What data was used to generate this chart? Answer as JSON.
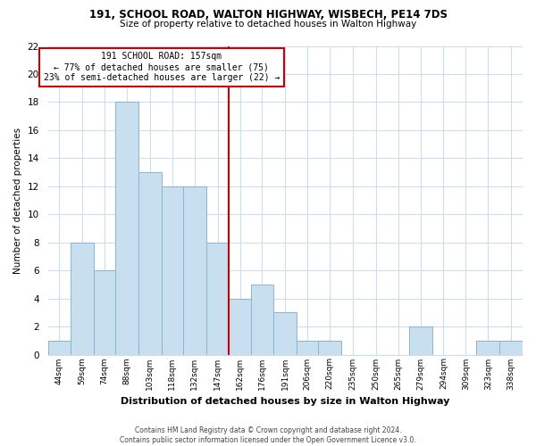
{
  "title": "191, SCHOOL ROAD, WALTON HIGHWAY, WISBECH, PE14 7DS",
  "subtitle": "Size of property relative to detached houses in Walton Highway",
  "xlabel": "Distribution of detached houses by size in Walton Highway",
  "ylabel": "Number of detached properties",
  "footer_line1": "Contains HM Land Registry data © Crown copyright and database right 2024.",
  "footer_line2": "Contains public sector information licensed under the Open Government Licence v3.0.",
  "bin_labels": [
    "44sqm",
    "59sqm",
    "74sqm",
    "88sqm",
    "103sqm",
    "118sqm",
    "132sqm",
    "147sqm",
    "162sqm",
    "176sqm",
    "191sqm",
    "206sqm",
    "220sqm",
    "235sqm",
    "250sqm",
    "265sqm",
    "279sqm",
    "294sqm",
    "309sqm",
    "323sqm",
    "338sqm"
  ],
  "bar_heights": [
    1,
    8,
    6,
    18,
    13,
    12,
    12,
    8,
    4,
    5,
    3,
    1,
    1,
    0,
    0,
    0,
    2,
    0,
    0,
    1,
    1
  ],
  "bar_color": "#c8dff0",
  "bar_edge_color": "#8ab4d4",
  "vline_x": 162,
  "vline_color": "#cc0000",
  "annotation_title": "191 SCHOOL ROAD: 157sqm",
  "annotation_line1": "← 77% of detached houses are smaller (75)",
  "annotation_line2": "23% of semi-detached houses are larger (22) →",
  "annotation_box_color": "white",
  "annotation_box_edge_color": "#cc0000",
  "ylim": [
    0,
    22
  ],
  "yticks": [
    0,
    2,
    4,
    6,
    8,
    10,
    12,
    14,
    16,
    18,
    20,
    22
  ],
  "bin_edges": [
    44,
    59,
    74,
    88,
    103,
    118,
    132,
    147,
    162,
    176,
    191,
    206,
    220,
    235,
    250,
    265,
    279,
    294,
    309,
    323,
    338,
    353
  ],
  "grid_color": "#ccddee",
  "background_color": "#ffffff"
}
